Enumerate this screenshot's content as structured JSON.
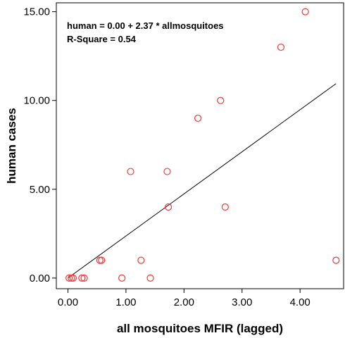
{
  "chart_data": {
    "type": "scatter",
    "xlabel": "all mosquitoes MFIR (lagged)",
    "ylabel": "human cases",
    "xlim": [
      -0.2,
      4.75
    ],
    "ylim": [
      -0.6,
      15.5
    ],
    "x_ticks": [
      0,
      1,
      2,
      3,
      4
    ],
    "x_tick_labels": [
      "0.00",
      "1.00",
      "2.00",
      "3.00",
      "4.00"
    ],
    "y_ticks": [
      0,
      5,
      10,
      15
    ],
    "y_tick_labels": [
      "0.00",
      "5.00",
      "10.00",
      "15.00"
    ],
    "grid": false,
    "marker_color": "#ff3333",
    "line_color": "#000000",
    "annotations": [
      "human = 0.00 + 2.37 * allmosquitoes",
      "R-Square = 0.54"
    ],
    "fit_line": {
      "intercept": 0.0,
      "slope": 2.37,
      "x_range": [
        0,
        4.62
      ]
    },
    "series": [
      {
        "points": [
          [
            0.02,
            0
          ],
          [
            0.06,
            0
          ],
          [
            0.09,
            0
          ],
          [
            0.24,
            0
          ],
          [
            0.28,
            0
          ],
          [
            0.55,
            1
          ],
          [
            0.58,
            1
          ],
          [
            0.93,
            0
          ],
          [
            1.08,
            6
          ],
          [
            1.26,
            1
          ],
          [
            1.42,
            0
          ],
          [
            1.71,
            6
          ],
          [
            1.73,
            4
          ],
          [
            2.24,
            9
          ],
          [
            2.63,
            10
          ],
          [
            2.71,
            4
          ],
          [
            3.67,
            13
          ],
          [
            4.09,
            15
          ],
          [
            4.62,
            1
          ]
        ]
      }
    ]
  }
}
